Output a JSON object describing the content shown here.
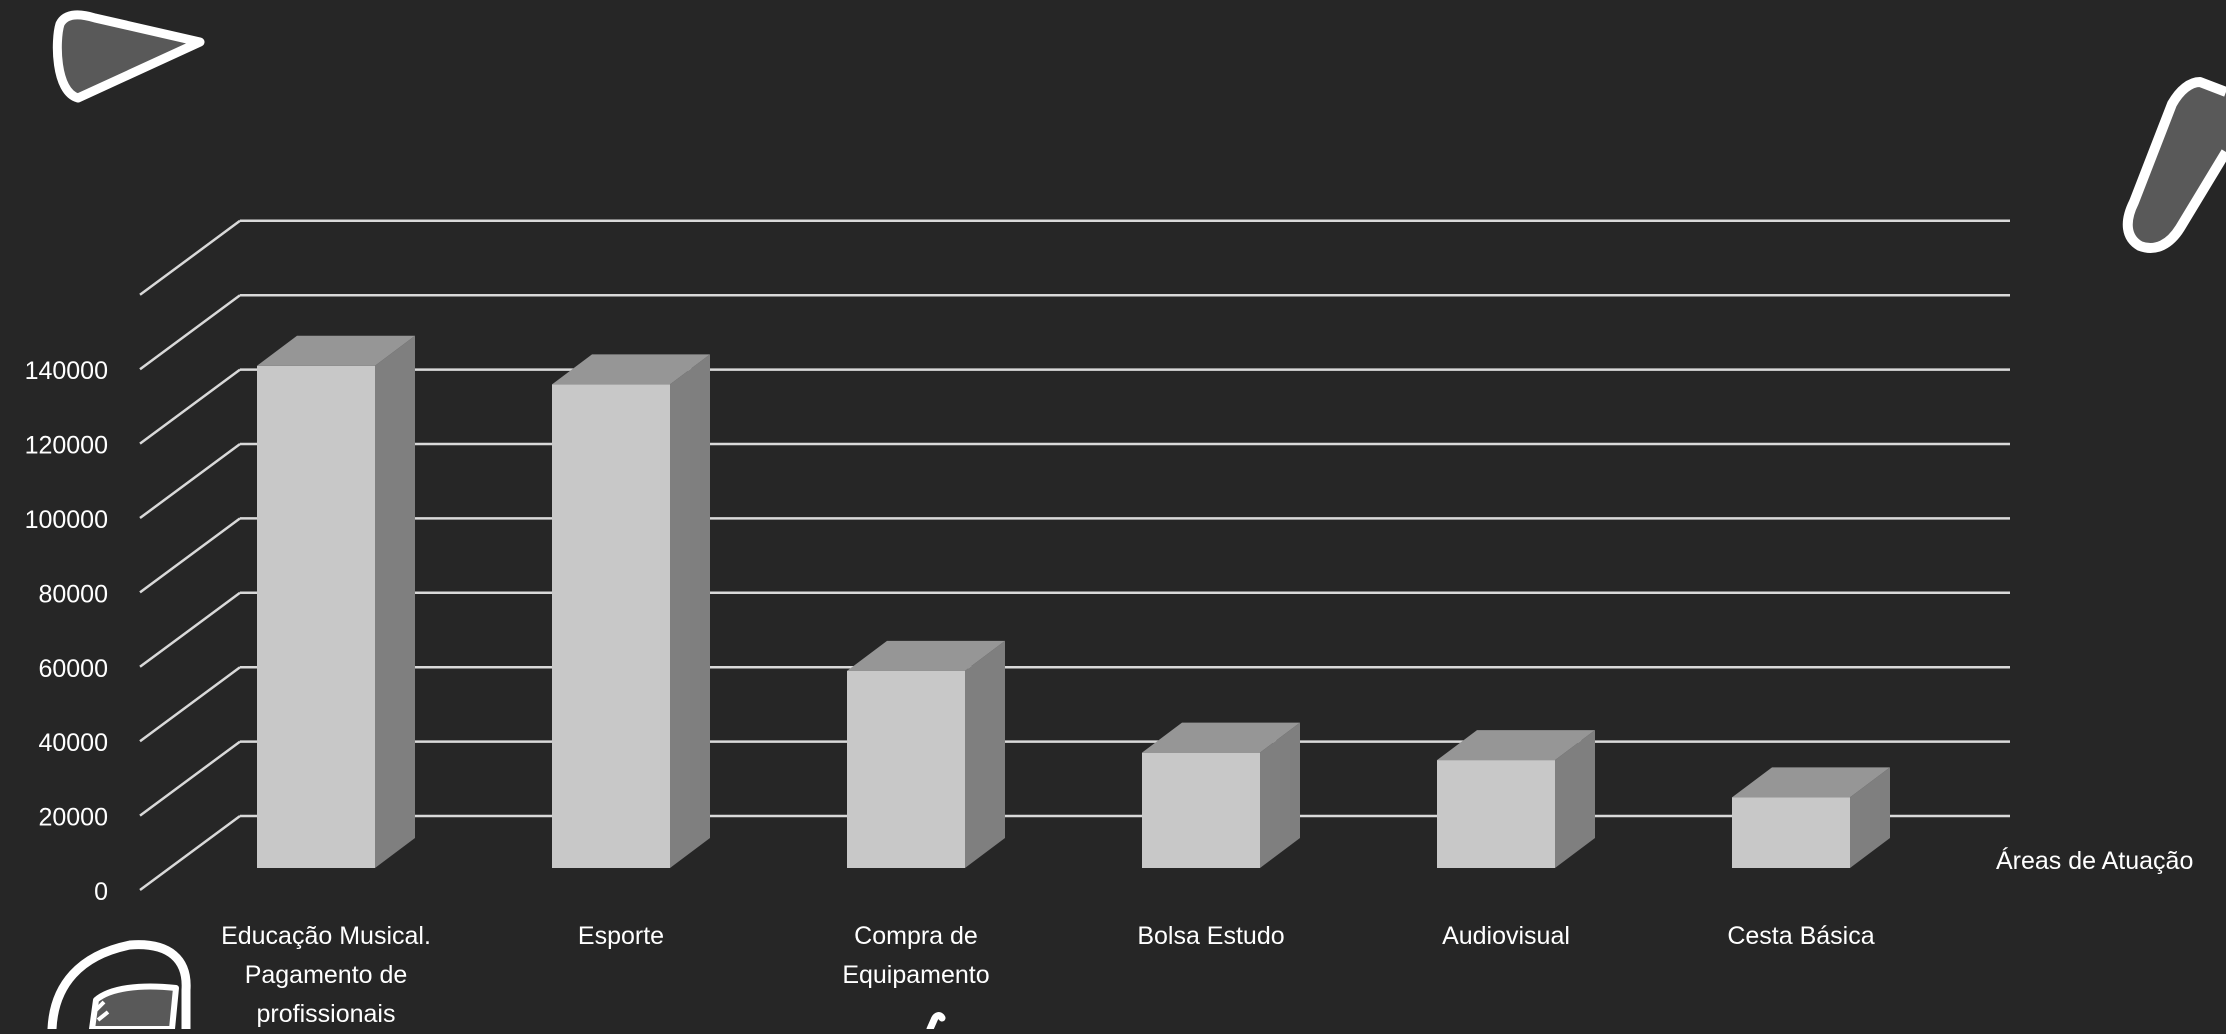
{
  "chart_data": {
    "type": "bar",
    "variant": "3d-column",
    "categories": [
      [
        "Educação Musical.",
        "Pagamento de",
        "profissionais"
      ],
      [
        "Esporte"
      ],
      [
        "Compra de",
        "Equipamento"
      ],
      [
        "Bolsa Estudo"
      ],
      [
        "Audiovisual"
      ],
      [
        "Cesta Básica"
      ]
    ],
    "values": [
      135000,
      130000,
      53000,
      31000,
      29000,
      19000
    ],
    "xlabel": "Áreas de Atuação",
    "ylabel": "",
    "ylim": [
      0,
      160000
    ],
    "yticks": [
      0,
      20000,
      40000,
      60000,
      80000,
      100000,
      120000,
      140000
    ],
    "grid": true,
    "legend": "none"
  },
  "colors": {
    "background": "#262626",
    "bar_front": "#c8c8c8",
    "bar_side": "#7f7f7f",
    "bar_top": "#969696",
    "gridline": "#d9d9d9",
    "text": "#ffffff",
    "doodle_fill": "#595959",
    "doodle_stroke": "#ffffff"
  },
  "decorations": [
    "triangle-doodle-icon",
    "pencil-doodle-icon",
    "leaf-doodle-icon",
    "stroke-doodle-icon"
  ]
}
